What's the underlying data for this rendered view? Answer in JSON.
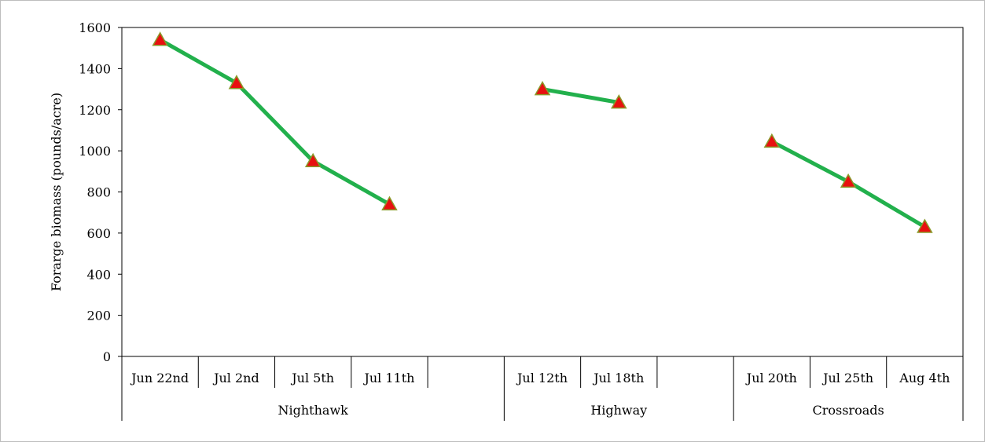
{
  "chart_data": {
    "type": "line",
    "title": "",
    "ylabel": "Forarge biomass (pounds/acre)",
    "ylim": [
      0,
      1600
    ],
    "yticks": [
      0,
      200,
      400,
      600,
      800,
      1000,
      1200,
      1400,
      1600
    ],
    "grid": false,
    "line_color": "#22b04c",
    "marker_color": "#e81010",
    "marker_edge_color": "#8a9a2a",
    "categories": [
      "Jun 22nd",
      "Jul 2nd",
      "Jul 5th",
      "Jul 11th",
      "",
      "Jul 12th",
      "Jul 18th",
      "",
      "Jul 20th",
      "Jul 25th",
      "Aug 4th"
    ],
    "groups": [
      {
        "name": "Nighthawk",
        "start": 0,
        "end": 4
      },
      {
        "name": "Highway",
        "start": 5,
        "end": 7
      },
      {
        "name": "Crossroads",
        "start": 8,
        "end": 10
      }
    ],
    "series": [
      {
        "values": [
          1540,
          1330,
          950,
          740,
          null,
          1300,
          1235,
          null,
          1045,
          850,
          630
        ]
      }
    ]
  }
}
